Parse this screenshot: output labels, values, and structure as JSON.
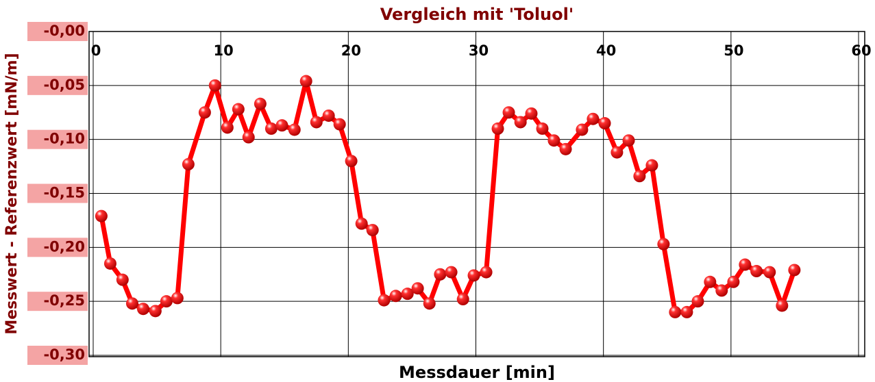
{
  "chart_data": {
    "type": "line",
    "title": "Vergleich mit 'Toluol'",
    "x_label": "Messdauer [min]",
    "y_label": "Messwert - Referenzwert  [mN/m]",
    "xlim": [
      0,
      60
    ],
    "xticks": [
      0,
      10,
      20,
      30,
      40,
      50,
      60
    ],
    "ylim": [
      -0.3,
      0
    ],
    "yticks": [
      {
        "value": 0,
        "label": "-0,00"
      },
      {
        "value": -0.05,
        "label": "-0,05"
      },
      {
        "value": -0.1,
        "label": "-0,10"
      },
      {
        "value": -0.15,
        "label": "-0,15"
      },
      {
        "value": -0.2,
        "label": "-0,20"
      },
      {
        "value": -0.25,
        "label": "-0,25"
      },
      {
        "value": -0.3,
        "label": "-0,30"
      }
    ],
    "grid": true,
    "series": [
      {
        "name": "Toluol",
        "color": "#ff0000",
        "x": [
          0.64,
          1.34,
          2.3,
          3.06,
          3.92,
          4.88,
          5.74,
          6.6,
          7.46,
          8.75,
          9.55,
          10.52,
          11.38,
          12.18,
          13.1,
          13.96,
          14.8,
          15.78,
          16.69,
          17.5,
          18.46,
          19.32,
          20.23,
          21.04,
          21.9,
          22.8,
          23.72,
          24.64,
          25.44,
          26.36,
          27.2,
          28.07,
          28.99,
          29.84,
          30.81,
          31.72,
          32.58,
          33.5,
          34.35,
          35.21,
          36.12,
          37.04,
          38.32,
          39.18,
          40.1,
          41.06,
          41.98,
          42.83,
          43.8,
          44.71,
          45.62,
          46.54,
          47.4,
          48.36,
          49.27,
          50.19,
          51.1,
          52.0,
          53.03,
          54.0,
          54.97
        ],
        "values": [
          -0.171,
          -0.215,
          -0.23,
          -0.252,
          -0.257,
          -0.259,
          -0.25,
          -0.247,
          -0.123,
          -0.075,
          -0.05,
          -0.089,
          -0.072,
          -0.098,
          -0.067,
          -0.09,
          -0.087,
          -0.091,
          -0.046,
          -0.084,
          -0.078,
          -0.086,
          -0.12,
          -0.178,
          -0.184,
          -0.249,
          -0.245,
          -0.243,
          -0.238,
          -0.252,
          -0.225,
          -0.223,
          -0.248,
          -0.226,
          -0.223,
          -0.09,
          -0.075,
          -0.084,
          -0.076,
          -0.09,
          -0.101,
          -0.109,
          -0.091,
          -0.081,
          -0.085,
          -0.112,
          -0.101,
          -0.134,
          -0.124,
          -0.197,
          -0.26,
          -0.26,
          -0.25,
          -0.232,
          -0.24,
          -0.232,
          -0.216,
          -0.222,
          -0.223,
          -0.254,
          -0.221
        ]
      }
    ]
  }
}
